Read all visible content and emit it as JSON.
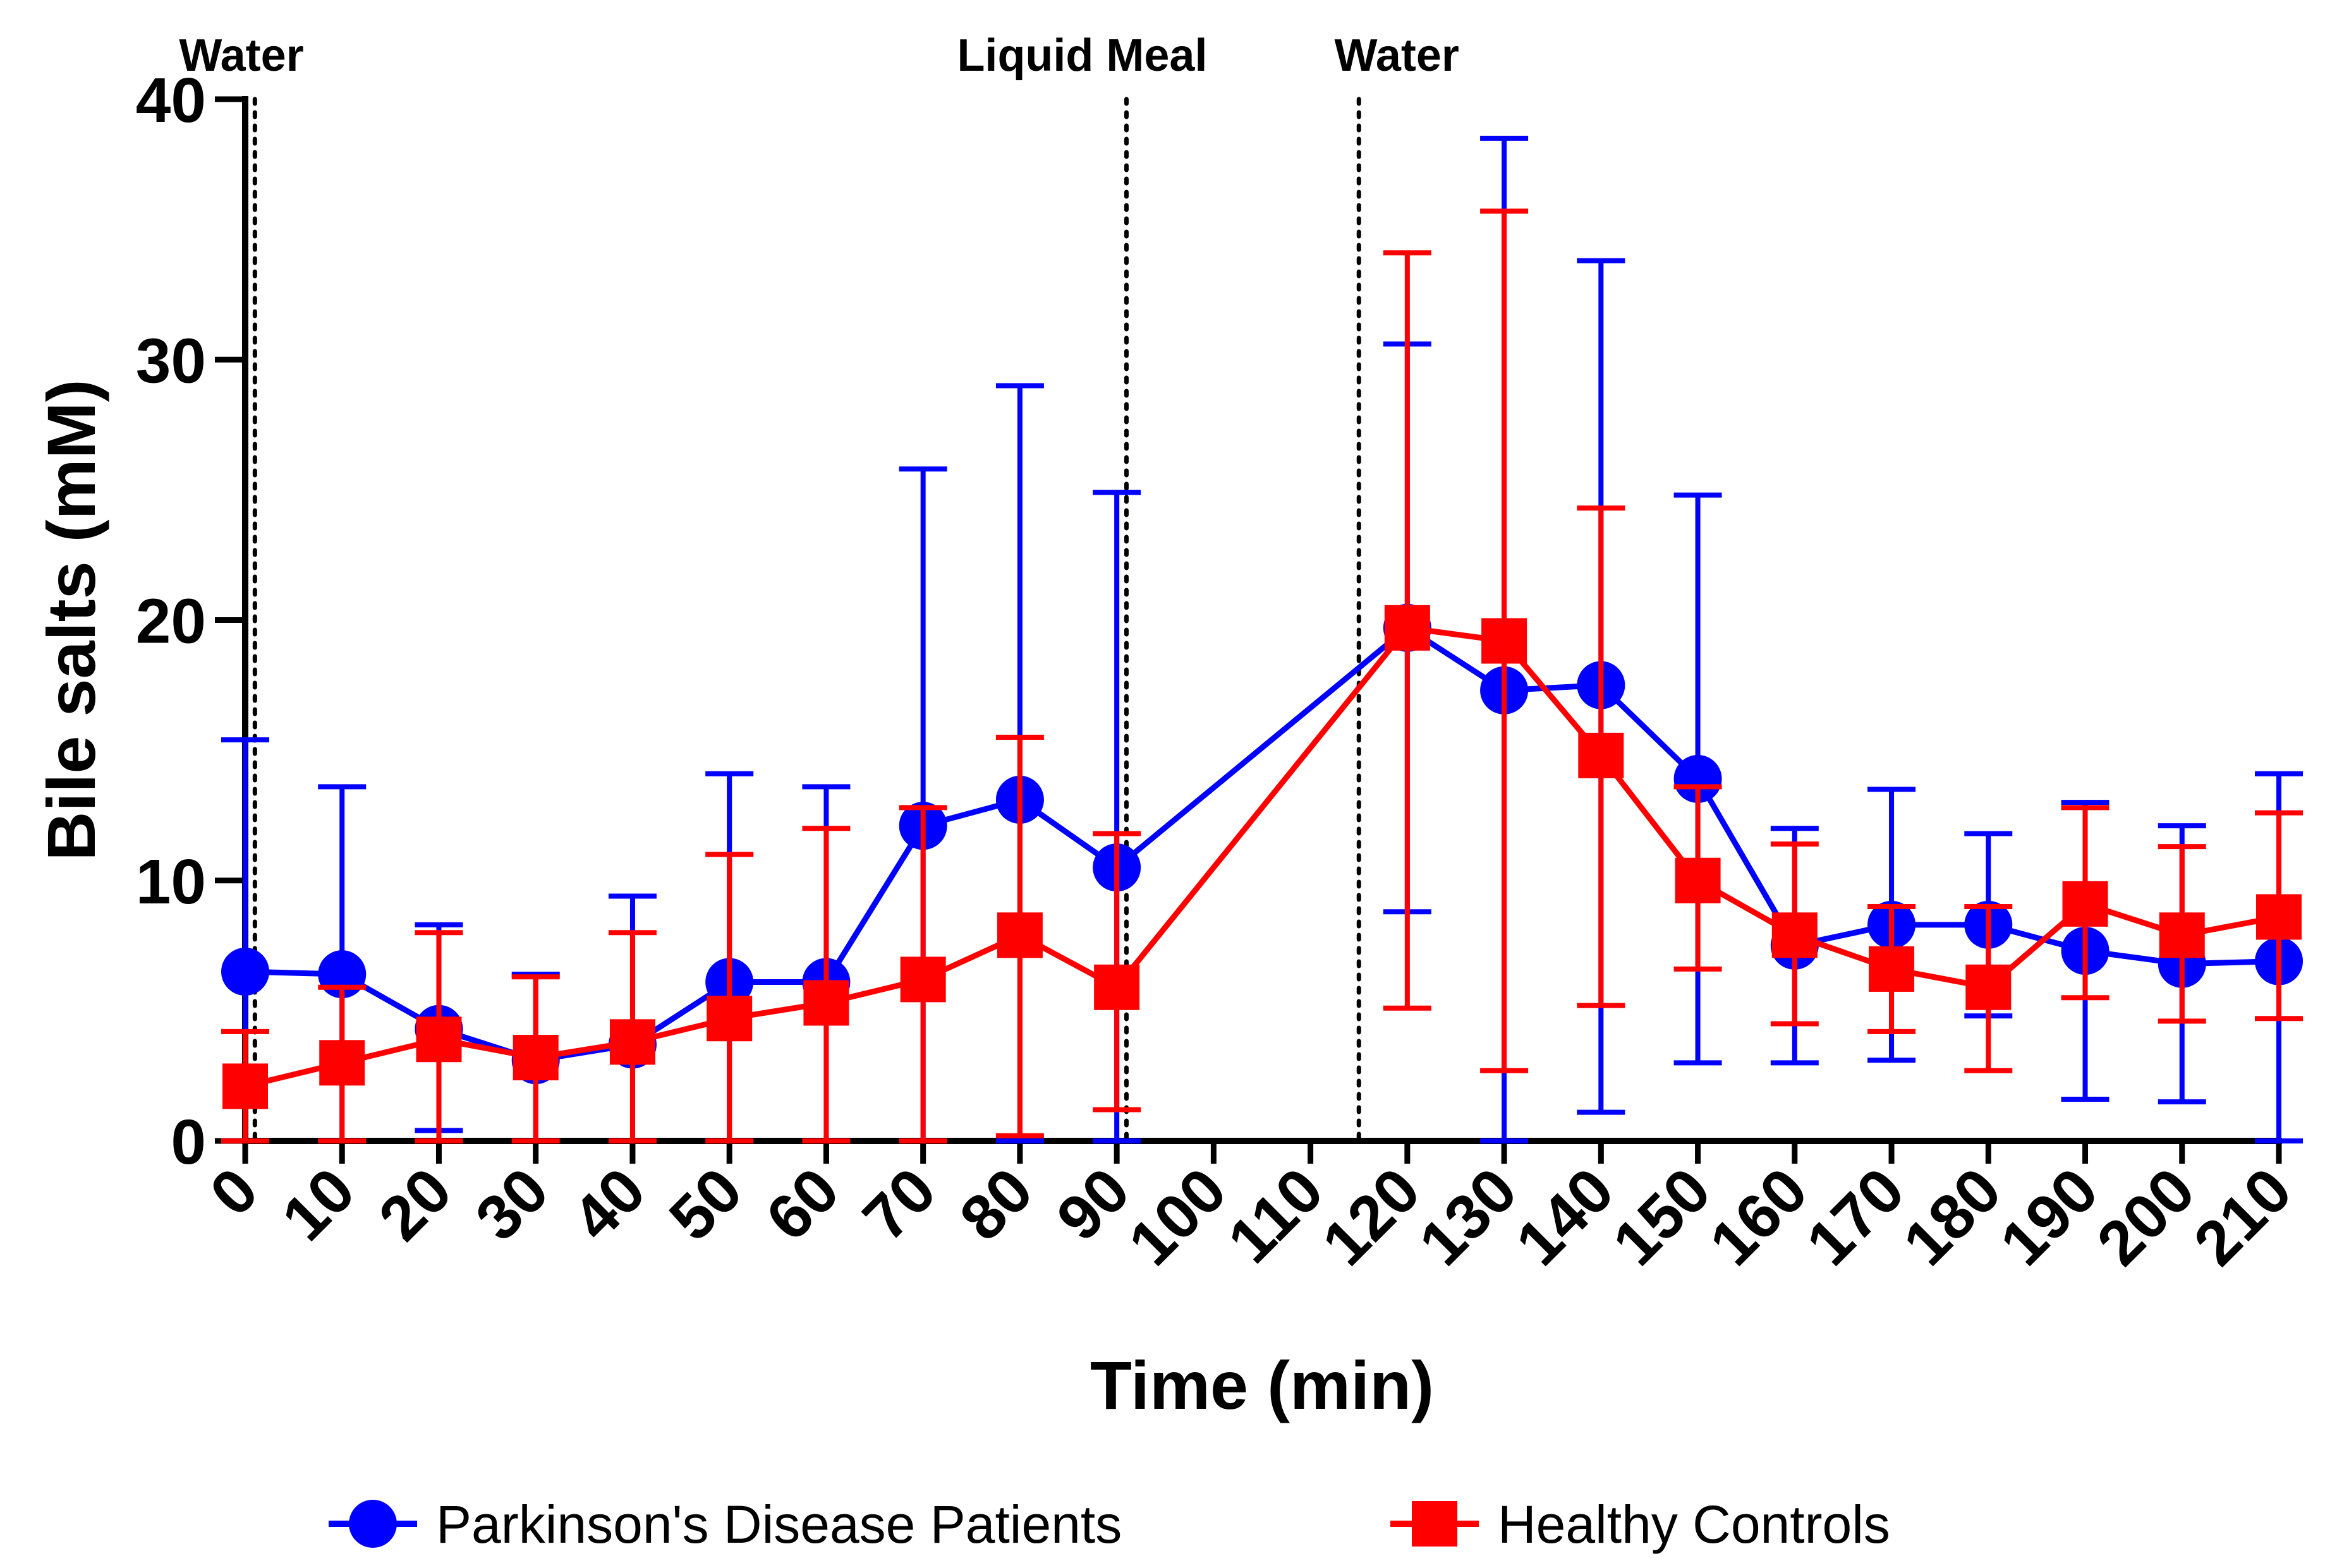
{
  "chart_data": {
    "type": "line",
    "xlabel": "Time (min)",
    "ylabel": "Bile salts (mM)",
    "xlim": [
      0,
      210
    ],
    "ylim": [
      0,
      40
    ],
    "x_ticks": [
      0,
      10,
      20,
      30,
      40,
      50,
      60,
      70,
      80,
      90,
      100,
      110,
      120,
      130,
      140,
      150,
      160,
      170,
      180,
      190,
      200,
      210
    ],
    "x_tick_labels": [
      "0",
      "10",
      "20",
      "30",
      "40",
      "50",
      "60",
      "70",
      "80",
      "90",
      "100",
      "110",
      "120",
      "130",
      "140",
      "150",
      "160",
      "170",
      "180",
      "190",
      "200",
      "210"
    ],
    "y_ticks": [
      0,
      10,
      20,
      30,
      40
    ],
    "y_tick_labels": [
      "0",
      "10",
      "20",
      "30",
      "40"
    ],
    "grid": false,
    "legend_position": "bottom",
    "annotations": [
      {
        "x": 1,
        "label": "Water",
        "style": "dotted-vertical-line"
      },
      {
        "x": 91,
        "label": "Liquid Meal",
        "style": "dotted-vertical-line"
      },
      {
        "x": 115,
        "label": "Water",
        "style": "dotted-vertical-line"
      }
    ],
    "series": [
      {
        "name": "Parkinson's Disease Patients",
        "color": "#0000ff",
        "marker": "circle",
        "x": [
          0,
          10,
          20,
          30,
          40,
          50,
          60,
          70,
          80,
          90,
          120,
          130,
          140,
          150,
          160,
          170,
          180,
          190,
          200,
          210
        ],
        "y": [
          6.5,
          6.4,
          4.3,
          3.1,
          3.7,
          6.1,
          6.1,
          12.1,
          13.1,
          10.5,
          19.7,
          17.3,
          17.5,
          13.9,
          7.5,
          8.3,
          8.3,
          7.3,
          6.8,
          6.9
        ],
        "upper": [
          15.4,
          13.6,
          8.3,
          6.4,
          9.4,
          14.1,
          13.6,
          25.8,
          29.0,
          24.9,
          30.6,
          38.5,
          33.8,
          24.8,
          12.0,
          13.5,
          11.8,
          13.0,
          12.1,
          14.1
        ],
        "lower": [
          0,
          0,
          0.4,
          0,
          0,
          0,
          0,
          0,
          0,
          0,
          8.8,
          0,
          1.1,
          3.0,
          3.0,
          3.1,
          4.8,
          1.6,
          1.5,
          0
        ]
      },
      {
        "name": "Healthy Controls",
        "color": "#ff0000",
        "marker": "square",
        "x": [
          0,
          10,
          20,
          30,
          40,
          50,
          60,
          70,
          80,
          90,
          120,
          130,
          140,
          150,
          160,
          170,
          180,
          190,
          200,
          210
        ],
        "y": [
          2.1,
          3.0,
          3.9,
          3.2,
          3.8,
          4.7,
          5.3,
          6.2,
          7.9,
          5.9,
          19.7,
          19.2,
          14.8,
          10.0,
          7.9,
          6.6,
          5.9,
          9.1,
          7.9,
          8.6
        ],
        "upper": [
          4.2,
          5.9,
          8.0,
          6.3,
          8.0,
          11.0,
          12.0,
          12.8,
          15.5,
          11.8,
          34.1,
          35.7,
          24.3,
          13.6,
          11.4,
          9.0,
          9.0,
          12.8,
          11.3,
          12.6
        ],
        "lower": [
          0,
          0,
          0,
          0,
          0,
          0,
          0,
          0,
          0.2,
          1.2,
          5.1,
          2.7,
          5.2,
          6.6,
          4.5,
          4.2,
          2.7,
          5.5,
          4.6,
          4.7
        ]
      }
    ]
  }
}
